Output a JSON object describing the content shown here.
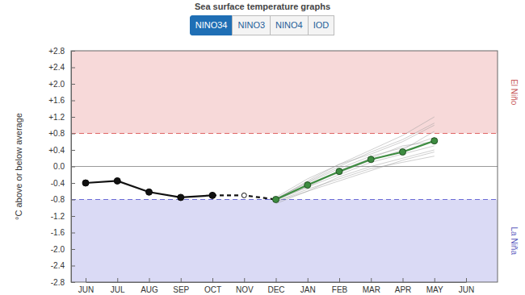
{
  "header": {
    "title": "Sea surface temperature graphs",
    "tabs": [
      {
        "label": "NINO34",
        "active": true
      },
      {
        "label": "NINO3",
        "active": false
      },
      {
        "label": "NINO4",
        "active": false
      },
      {
        "label": "IOD",
        "active": false
      }
    ]
  },
  "chart_data": {
    "type": "line",
    "y_label": "°C above or below average",
    "categories": [
      "JUN",
      "JUL",
      "AUG",
      "SEP",
      "OCT",
      "NOV",
      "DEC",
      "JAN",
      "FEB",
      "MAR",
      "APR",
      "MAY",
      "JUN"
    ],
    "ylim": [
      -2.8,
      2.8
    ],
    "yticks": [
      {
        "value": 2.8,
        "label": "+2.8"
      },
      {
        "value": 2.4,
        "label": "+2.4"
      },
      {
        "value": 2,
        "label": "+2.0"
      },
      {
        "value": 1.6,
        "label": "+1.6"
      },
      {
        "value": 1.2,
        "label": "+1.2"
      },
      {
        "value": 0.8,
        "label": "+0.8"
      },
      {
        "value": 0.4,
        "label": "+0.4"
      },
      {
        "value": 0,
        "label": "0.0"
      },
      -0.4,
      -0.8,
      -1.2,
      -1.6,
      {
        "value": -2,
        "label": "-2.0"
      },
      -2.4,
      -2.8
    ],
    "thresholds": [
      {
        "label": "El Niño",
        "value": 0.8,
        "color": "#e06666"
      },
      {
        "label": "La Niña",
        "value": -0.8,
        "color": "#6b6bd6"
      }
    ],
    "series": [
      {
        "color": "#9a9a9a",
        "line_style": "solid",
        "marker": "none",
        "values": [
          null,
          null,
          null,
          null,
          null,
          null,
          -0.85,
          -0.55,
          -0.3,
          -0.05,
          0.1,
          0.25,
          null
        ]
      },
      {
        "color": "#9a9a9a",
        "line_style": "solid",
        "marker": "none",
        "values": [
          null,
          null,
          null,
          null,
          null,
          null,
          -0.8,
          -0.35,
          0.05,
          0.4,
          0.75,
          1.2,
          null
        ]
      },
      {
        "color": "#9a9a9a",
        "line_style": "solid",
        "marker": "none",
        "values": [
          null,
          null,
          null,
          null,
          null,
          null,
          -0.82,
          -0.5,
          -0.2,
          0.1,
          0.3,
          0.5,
          null
        ]
      },
      {
        "color": "#9a9a9a",
        "line_style": "solid",
        "marker": "none",
        "values": [
          null,
          null,
          null,
          null,
          null,
          null,
          -0.78,
          -0.4,
          -0.05,
          0.25,
          0.45,
          0.7,
          null
        ]
      },
      {
        "color": "#9a9a9a",
        "line_style": "solid",
        "marker": "none",
        "values": [
          null,
          null,
          null,
          null,
          null,
          null,
          -0.8,
          -0.45,
          -0.15,
          0.15,
          0.4,
          0.85,
          null
        ]
      },
      {
        "color": "#9a9a9a",
        "line_style": "solid",
        "marker": "none",
        "values": [
          null,
          null,
          null,
          null,
          null,
          null,
          -0.85,
          -0.6,
          -0.25,
          0.0,
          0.2,
          0.4,
          null
        ]
      },
      {
        "color": "#9a9a9a",
        "line_style": "solid",
        "marker": "none",
        "values": [
          null,
          null,
          null,
          null,
          null,
          null,
          -0.75,
          -0.3,
          0.05,
          0.3,
          0.6,
          1.0,
          null
        ]
      },
      {
        "color": "#9a9a9a",
        "line_style": "solid",
        "marker": "none",
        "values": [
          null,
          null,
          null,
          null,
          null,
          null,
          -0.8,
          -0.5,
          -0.1,
          0.2,
          0.5,
          0.6,
          null
        ]
      },
      {
        "color": "#9a9a9a",
        "line_style": "solid",
        "marker": "none",
        "values": [
          null,
          null,
          null,
          null,
          null,
          null,
          -0.9,
          -0.6,
          -0.35,
          -0.1,
          0.15,
          0.35,
          null
        ]
      },
      {
        "color": "#9a9a9a",
        "line_style": "solid",
        "marker": "none",
        "values": [
          null,
          null,
          null,
          null,
          null,
          null,
          -0.78,
          -0.38,
          0.0,
          0.35,
          0.65,
          1.05,
          null
        ]
      },
      {
        "color": "#111111",
        "line_style": "dashed",
        "marker": "open",
        "values": [
          null,
          null,
          null,
          null,
          -0.7,
          -0.7,
          -0.8,
          null,
          null,
          null,
          null,
          null,
          null
        ]
      },
      {
        "color": "#111111",
        "line_style": "solid",
        "marker": "circle",
        "values": [
          -0.4,
          -0.35,
          -0.62,
          -0.75,
          -0.7,
          null,
          null,
          null,
          null,
          null,
          null,
          null,
          null
        ]
      },
      {
        "color": "#3d8c40",
        "line_style": "solid",
        "marker": "circle",
        "values": [
          null,
          null,
          null,
          null,
          null,
          null,
          -0.8,
          -0.45,
          -0.12,
          0.17,
          0.35,
          0.62,
          null
        ]
      }
    ]
  }
}
